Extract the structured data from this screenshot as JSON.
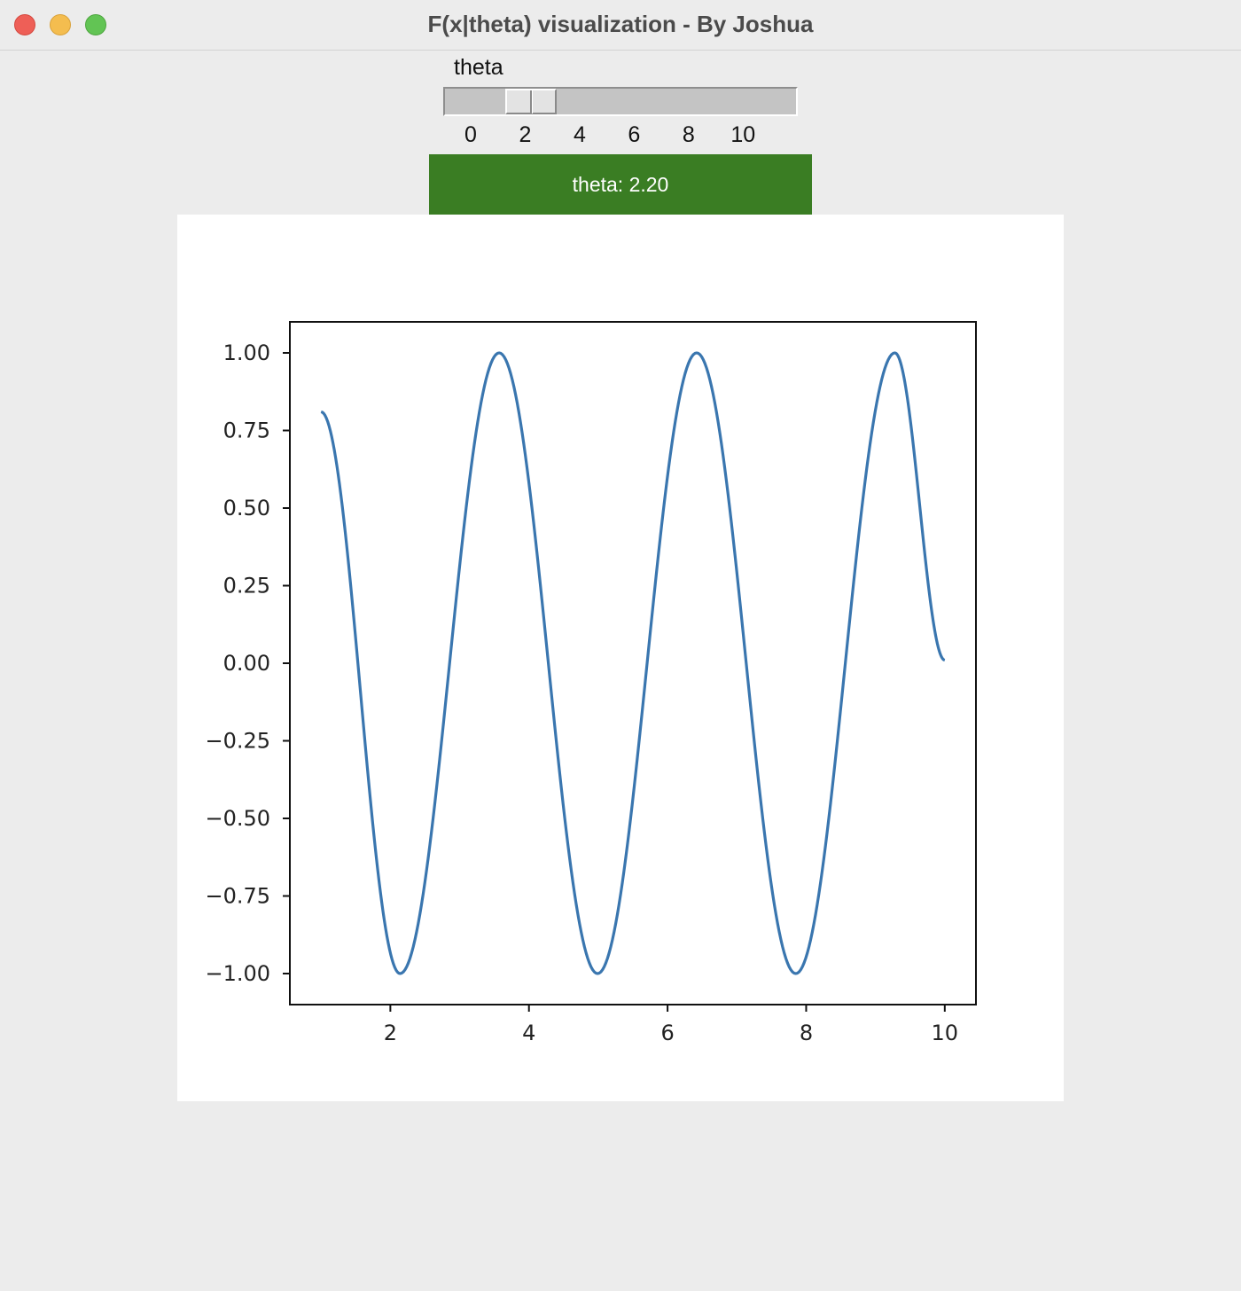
{
  "window": {
    "title": "F(x|theta) visualization - By Joshua"
  },
  "slider": {
    "label": "theta",
    "min": 0,
    "max": 11,
    "value": 2.2,
    "ticks": [
      "0",
      "2",
      "4",
      "6",
      "8",
      "10"
    ],
    "tick_values": [
      0,
      2,
      4,
      6,
      8,
      10
    ]
  },
  "display": {
    "text": "theta: 2.20",
    "background": "#3a7d23"
  },
  "chart_data": {
    "type": "line",
    "title": "",
    "xlabel": "",
    "ylabel": "",
    "xlim": [
      0.55,
      10.45
    ],
    "ylim": [
      -1.1,
      1.1
    ],
    "x_ticks": [
      2,
      4,
      6,
      8,
      10
    ],
    "x_tick_labels": [
      "2",
      "4",
      "6",
      "8",
      "10"
    ],
    "y_ticks": [
      1.0,
      0.75,
      0.5,
      0.25,
      0.0,
      -0.25,
      -0.5,
      -0.75,
      -1.0
    ],
    "y_tick_labels": [
      "1.00",
      "0.75",
      "0.50",
      "0.25",
      "0.00",
      "−0.25",
      "−0.50",
      "−0.75",
      "−1.00"
    ],
    "grid": false,
    "line_color": "#3a76af",
    "series": [
      {
        "x": [
          1.0,
          2.14,
          3.57,
          4.99,
          6.42,
          7.85,
          9.28,
          10.0
        ],
        "y": [
          0.81,
          -1.0,
          1.0,
          -1.0,
          1.0,
          -1.0,
          1.0,
          0.01
        ]
      }
    ]
  }
}
